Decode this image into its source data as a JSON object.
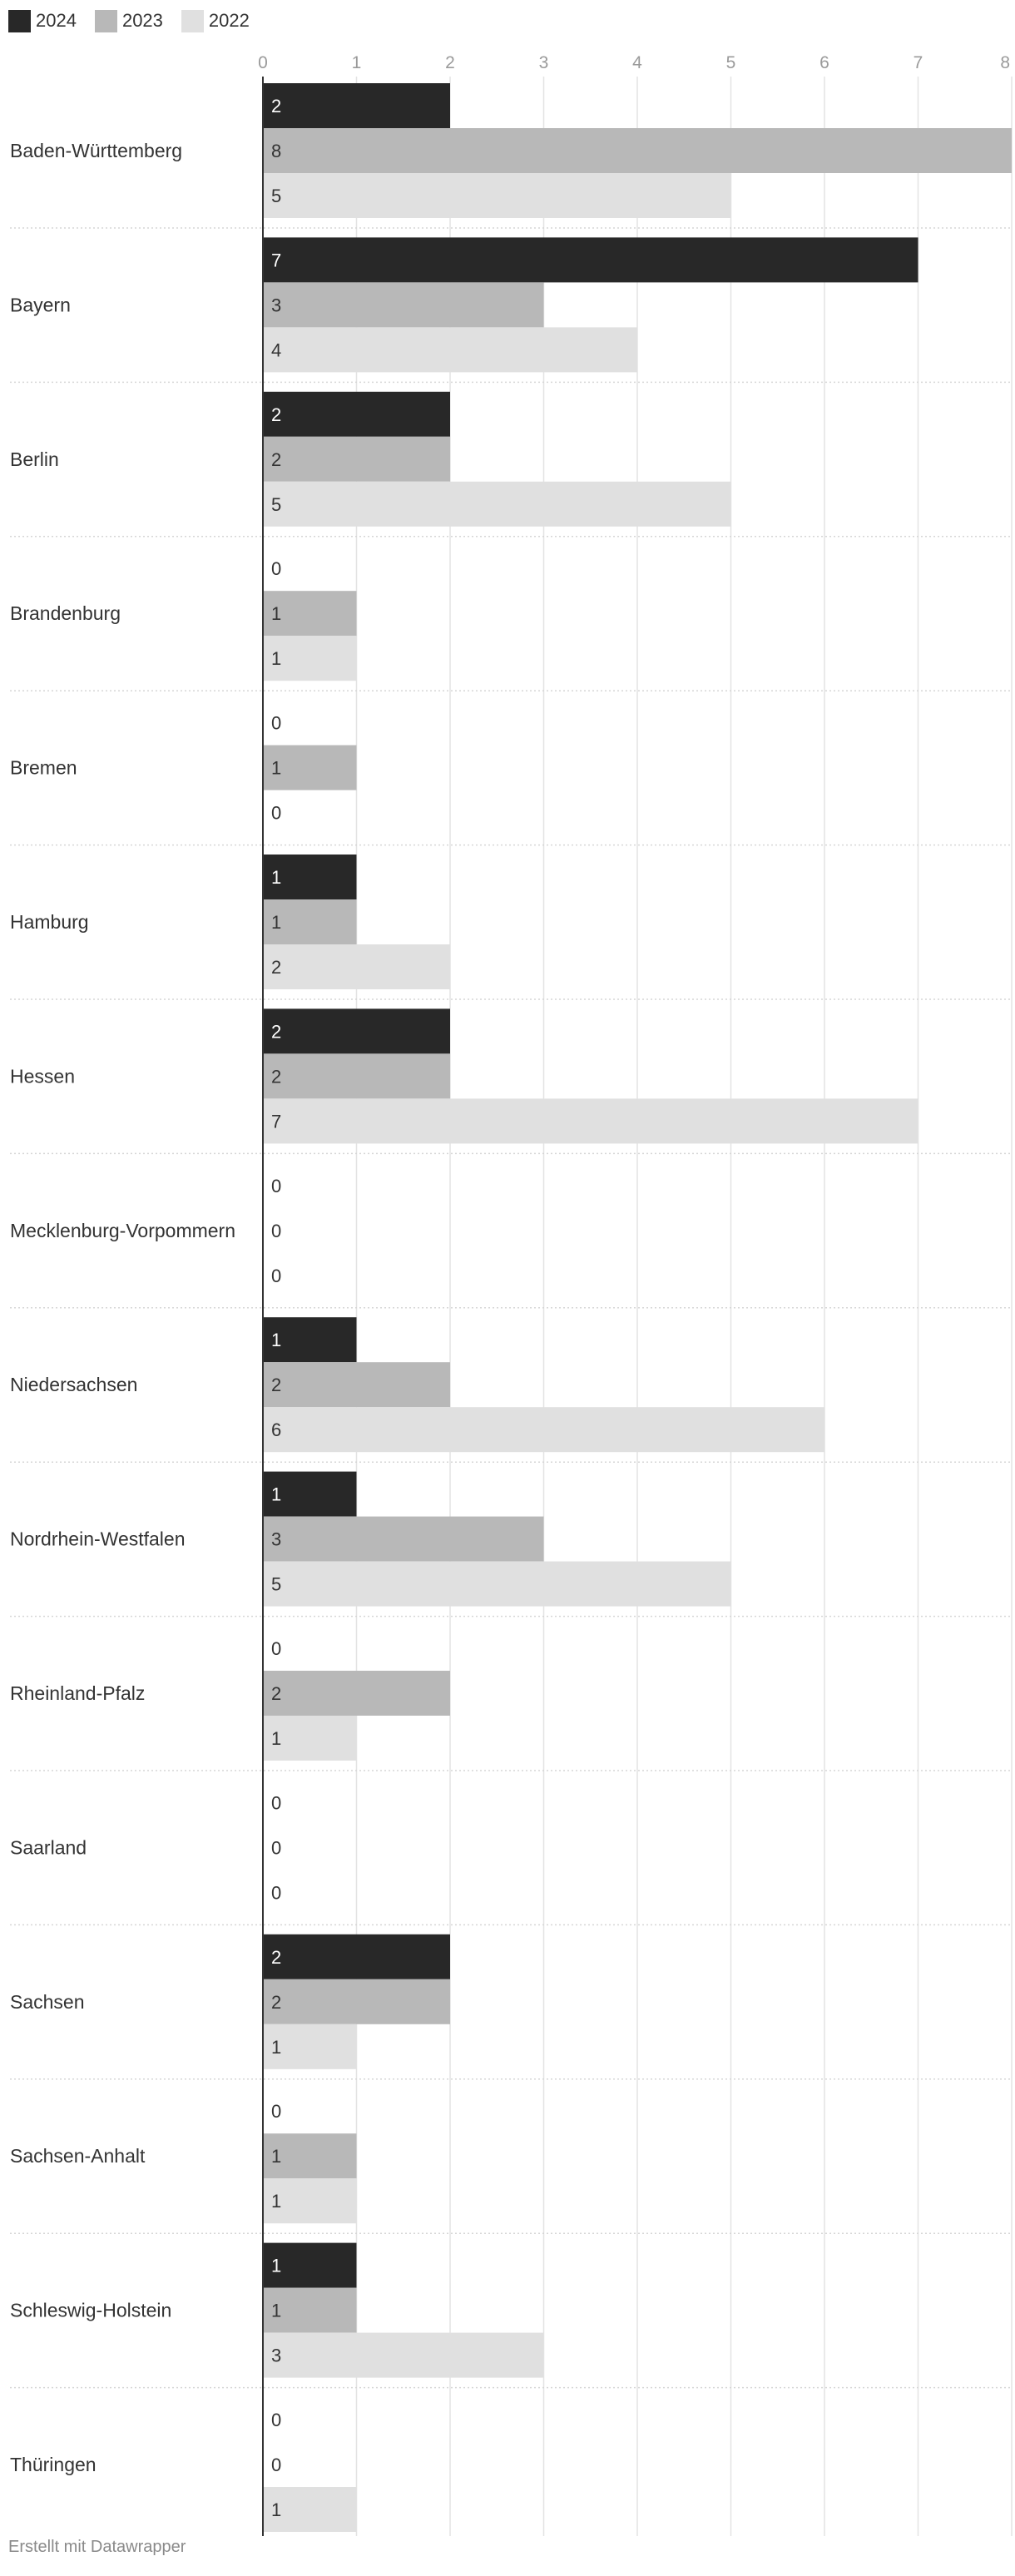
{
  "chart_data": {
    "type": "bar",
    "orientation": "horizontal",
    "xlim": [
      0,
      8
    ],
    "ticks": [
      "0",
      "1",
      "2",
      "3",
      "4",
      "5",
      "6",
      "7",
      "8"
    ],
    "grid": true,
    "legend_position": "top-left",
    "categories": [
      "Baden-Württemberg",
      "Bayern",
      "Berlin",
      "Brandenburg",
      "Bremen",
      "Hamburg",
      "Hessen",
      "Mecklenburg-Vorpommern",
      "Niedersachsen",
      "Nordrhein-Westfalen",
      "Rheinland-Pfalz",
      "Saarland",
      "Sachsen",
      "Sachsen-Anhalt",
      "Schleswig-Holstein",
      "Thüringen"
    ],
    "series": [
      {
        "name": "2024",
        "color": "#282828",
        "label_color": "#ffffff",
        "values": [
          2,
          7,
          2,
          0,
          0,
          1,
          2,
          0,
          1,
          1,
          0,
          0,
          2,
          0,
          1,
          0
        ]
      },
      {
        "name": "2023",
        "color": "#b8b8b8",
        "label_color": "#333333",
        "values": [
          8,
          3,
          2,
          1,
          1,
          1,
          2,
          0,
          2,
          3,
          2,
          0,
          2,
          1,
          1,
          0
        ]
      },
      {
        "name": "2022",
        "color": "#e0e0e0",
        "label_color": "#333333",
        "values": [
          5,
          4,
          5,
          1,
          0,
          2,
          7,
          0,
          6,
          5,
          1,
          0,
          1,
          1,
          3,
          1
        ]
      }
    ]
  },
  "footer": {
    "credit": "Erstellt mit Datawrapper"
  }
}
